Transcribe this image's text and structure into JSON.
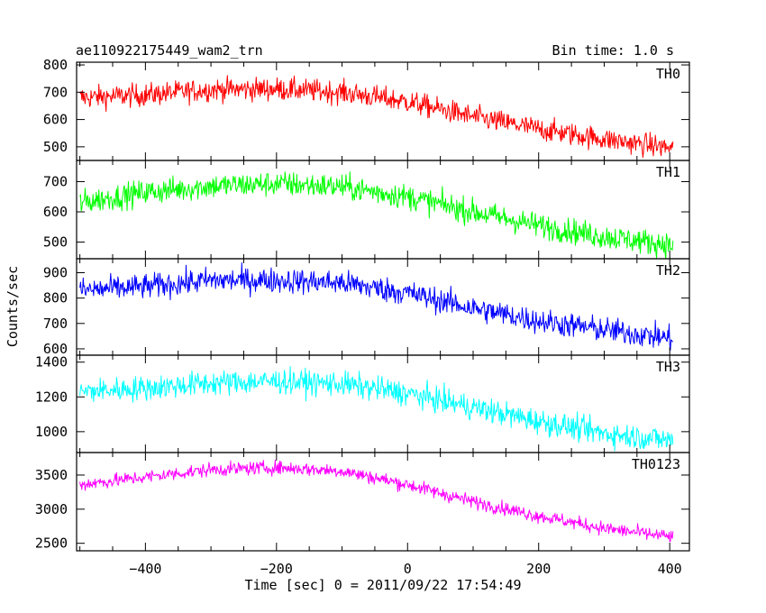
{
  "header": {
    "title": "ae110922175449_wam2_trn",
    "bin_time": "Bin time: 1.0 s"
  },
  "axes": {
    "xlabel": "Time [sec] 0 = 2011/09/22 17:54:49",
    "ylabel": "Counts/sec"
  },
  "chart_data": {
    "type": "line",
    "title": "ae110922175449_wam2_trn",
    "xlabel": "Time [sec] 0 = 2011/09/22 17:54:49",
    "ylabel": "Counts/sec",
    "xlim": [
      -505,
      430
    ],
    "x_ticks": [
      -400,
      -200,
      0,
      200,
      400
    ],
    "x_tick_labels": [
      "−400",
      "−200",
      "0",
      "200",
      "400"
    ],
    "x_data_range": [
      -500,
      405
    ],
    "bin_time_s": 1.0,
    "panels": [
      {
        "name": "TH0",
        "color": "#ff0000",
        "ylim": [
          450,
          810
        ],
        "yticks": [
          500,
          600,
          700,
          800
        ],
        "ytick_labels": [
          "500",
          "600",
          "700",
          "800"
        ],
        "trend": {
          "x": [
            -500,
            -400,
            -300,
            -200,
            -100,
            0,
            100,
            200,
            300,
            405
          ],
          "y": [
            680,
            690,
            710,
            712,
            700,
            665,
            610,
            565,
            528,
            495
          ]
        },
        "noise_amplitude": 38
      },
      {
        "name": "TH1",
        "color": "#00ff00",
        "ylim": [
          445,
          770
        ],
        "yticks": [
          500,
          600,
          700
        ],
        "ytick_labels": [
          "500",
          "600",
          "700"
        ],
        "trend": {
          "x": [
            -500,
            -400,
            -300,
            -200,
            -100,
            0,
            100,
            200,
            300,
            405
          ],
          "y": [
            630,
            665,
            685,
            693,
            683,
            650,
            600,
            555,
            518,
            490
          ]
        },
        "noise_amplitude": 38
      },
      {
        "name": "TH2",
        "color": "#0000ff",
        "ylim": [
          575,
          955
        ],
        "yticks": [
          600,
          700,
          800,
          900
        ],
        "ytick_labels": [
          "600",
          "700",
          "800",
          "900"
        ],
        "trend": {
          "x": [
            -500,
            -400,
            -300,
            -200,
            -100,
            0,
            100,
            200,
            300,
            405
          ],
          "y": [
            830,
            845,
            870,
            870,
            860,
            820,
            760,
            710,
            675,
            640
          ]
        },
        "noise_amplitude": 45
      },
      {
        "name": "TH3",
        "color": "#00ffff",
        "ylim": [
          880,
          1440
        ],
        "yticks": [
          1000,
          1200,
          1400
        ],
        "ytick_labels": [
          "1000",
          "1200",
          "1400"
        ],
        "trend": {
          "x": [
            -500,
            -400,
            -300,
            -200,
            -100,
            0,
            100,
            200,
            300,
            405
          ],
          "y": [
            1230,
            1250,
            1280,
            1290,
            1275,
            1220,
            1140,
            1060,
            990,
            950
          ]
        },
        "noise_amplitude": 65
      },
      {
        "name": "TH0123",
        "color": "#ff00ff",
        "ylim": [
          2390,
          3830
        ],
        "yticks": [
          2500,
          3000,
          3500
        ],
        "ytick_labels": [
          "2500",
          "3000",
          "3500"
        ],
        "trend": {
          "x": [
            -500,
            -400,
            -300,
            -200,
            -100,
            0,
            100,
            200,
            300,
            405
          ],
          "y": [
            3360,
            3470,
            3580,
            3610,
            3560,
            3360,
            3110,
            2900,
            2720,
            2590
          ]
        },
        "noise_amplitude": 90
      }
    ]
  }
}
